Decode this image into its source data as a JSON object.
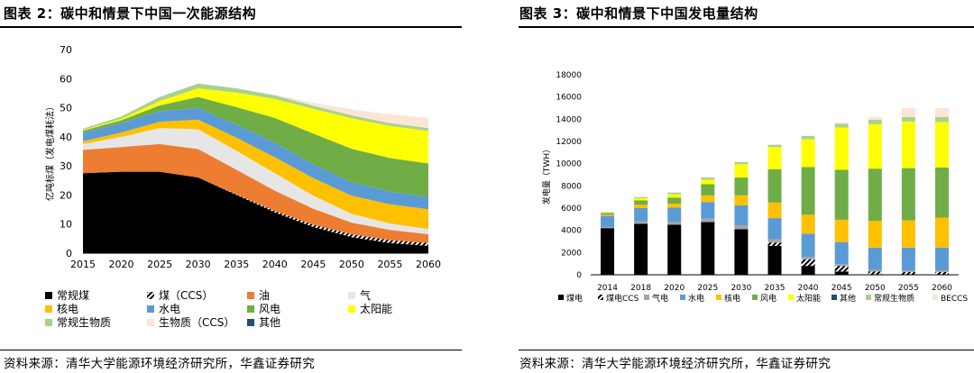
{
  "left": {
    "title": "图表 2：碳中和情景下中国一次能源结构",
    "source": "资料来源：清华大学能源环境经济研究所，华鑫证券研究"
  },
  "right": {
    "title": "图表 3：碳中和情景下中国发电量结构",
    "source": "资料来源：清华大学能源环境经济研究所，华鑫证券研究"
  },
  "chart_data": [
    {
      "type": "area",
      "stacked": true,
      "ylabel": "亿吨标煤（发电煤耗法）",
      "ylim": [
        0,
        70
      ],
      "yticks": [
        0,
        10,
        20,
        30,
        40,
        50,
        60,
        70
      ],
      "x": [
        "2015",
        "2020",
        "2025",
        "2030",
        "2035",
        "2040",
        "2045",
        "2050",
        "2055",
        "2060"
      ],
      "grid": false,
      "legend_position": "bottom",
      "series": [
        {
          "name": "常规煤",
          "color": "#000000",
          "values": [
            27.5,
            28,
            28,
            26,
            20,
            14,
            9,
            5.5,
            3.5,
            2.5
          ]
        },
        {
          "name": "煤（CCS）",
          "color": "#555555",
          "pattern": "hatch",
          "values": [
            0,
            0,
            0,
            0,
            0.2,
            0.5,
            0.8,
            1,
            1,
            1
          ]
        },
        {
          "name": "油",
          "color": "#ed7d31",
          "values": [
            8,
            8.5,
            9.5,
            9.8,
            8.5,
            7,
            5.5,
            4,
            3.5,
            3
          ]
        },
        {
          "name": "气",
          "color": "#e7e6e6",
          "values": [
            2,
            3.5,
            5.5,
            6.8,
            6.5,
            6,
            4.5,
            3,
            2.2,
            1.8
          ]
        },
        {
          "name": "核电",
          "color": "#ffc000",
          "values": [
            1,
            1.5,
            2.2,
            3.3,
            4.5,
            5.5,
            6,
            6.3,
            6.6,
            6.8
          ]
        },
        {
          "name": "水电",
          "color": "#5b9bd5",
          "values": [
            3,
            3.2,
            3.6,
            4,
            4.5,
            5,
            4.8,
            4.6,
            4.4,
            4.2
          ]
        },
        {
          "name": "风电",
          "color": "#70ad47",
          "values": [
            0.6,
            1,
            2,
            3.8,
            6,
            8.5,
            10.5,
            11.5,
            11.5,
            11.5
          ]
        },
        {
          "name": "太阳能",
          "color": "#ffff00",
          "values": [
            0.2,
            0.5,
            1.5,
            3,
            5,
            6.5,
            8.5,
            10.5,
            11,
            11.2
          ]
        },
        {
          "name": "常规生物质",
          "color": "#a9d18e",
          "values": [
            0.5,
            0.8,
            1.4,
            1.6,
            1.5,
            1.2,
            1.1,
            1,
            1,
            1
          ]
        },
        {
          "name": "生物质（CCS）",
          "color": "#fbe5d6",
          "values": [
            0,
            0,
            0,
            0,
            0,
            0.3,
            1,
            2,
            3,
            3.5
          ]
        },
        {
          "name": "其他",
          "color": "#1f4e79",
          "values": [
            0,
            0,
            0,
            0,
            0,
            0,
            0,
            0,
            0,
            0
          ]
        }
      ]
    },
    {
      "type": "bar",
      "stacked": true,
      "ylabel": "发电量（TWH）",
      "ylim": [
        0,
        18000
      ],
      "yticks": [
        0,
        2000,
        4000,
        6000,
        8000,
        10000,
        12000,
        14000,
        16000,
        18000
      ],
      "categories": [
        "2014",
        "2018",
        "2020",
        "2025",
        "2030",
        "2035",
        "2040",
        "2045",
        "2050",
        "2055",
        "2060"
      ],
      "grid": false,
      "legend_position": "bottom",
      "series": [
        {
          "name": "煤电",
          "color": "#000000",
          "values": [
            4200,
            4600,
            4500,
            4750,
            4100,
            2600,
            800,
            300,
            0,
            0,
            0
          ]
        },
        {
          "name": "煤电CCS",
          "color": "#555555",
          "pattern": "hatch",
          "values": [
            0,
            0,
            0,
            0,
            0,
            300,
            600,
            500,
            300,
            250,
            250
          ]
        },
        {
          "name": "气电",
          "color": "#a5a5a5",
          "values": [
            100,
            200,
            250,
            300,
            350,
            300,
            200,
            150,
            150,
            150,
            150
          ]
        },
        {
          "name": "水电",
          "color": "#5b9bd5",
          "values": [
            1000,
            1200,
            1300,
            1500,
            1800,
            1900,
            2100,
            2000,
            2000,
            2050,
            2050
          ]
        },
        {
          "name": "核电",
          "color": "#ffc000",
          "values": [
            100,
            300,
            350,
            600,
            900,
            1400,
            1700,
            2000,
            2400,
            2450,
            2700
          ]
        },
        {
          "name": "风电",
          "color": "#70ad47",
          "values": [
            150,
            400,
            550,
            1000,
            1600,
            3000,
            4300,
            4500,
            4700,
            4700,
            4500
          ]
        },
        {
          "name": "太阳能",
          "color": "#ffff00",
          "values": [
            30,
            200,
            300,
            400,
            1200,
            2000,
            2500,
            3800,
            4000,
            4200,
            4100
          ]
        },
        {
          "name": "其他",
          "color": "#1f4e79",
          "values": [
            0,
            0,
            0,
            0,
            0,
            0,
            0,
            0,
            0,
            0,
            0
          ]
        },
        {
          "name": "常规生物质",
          "color": "#a9d18e",
          "values": [
            60,
            100,
            150,
            200,
            200,
            200,
            300,
            350,
            400,
            400,
            450
          ]
        },
        {
          "name": "BECCS",
          "color": "#fbe5d6",
          "values": [
            0,
            0,
            0,
            0,
            0,
            0,
            0,
            100,
            250,
            800,
            800
          ]
        }
      ]
    }
  ]
}
